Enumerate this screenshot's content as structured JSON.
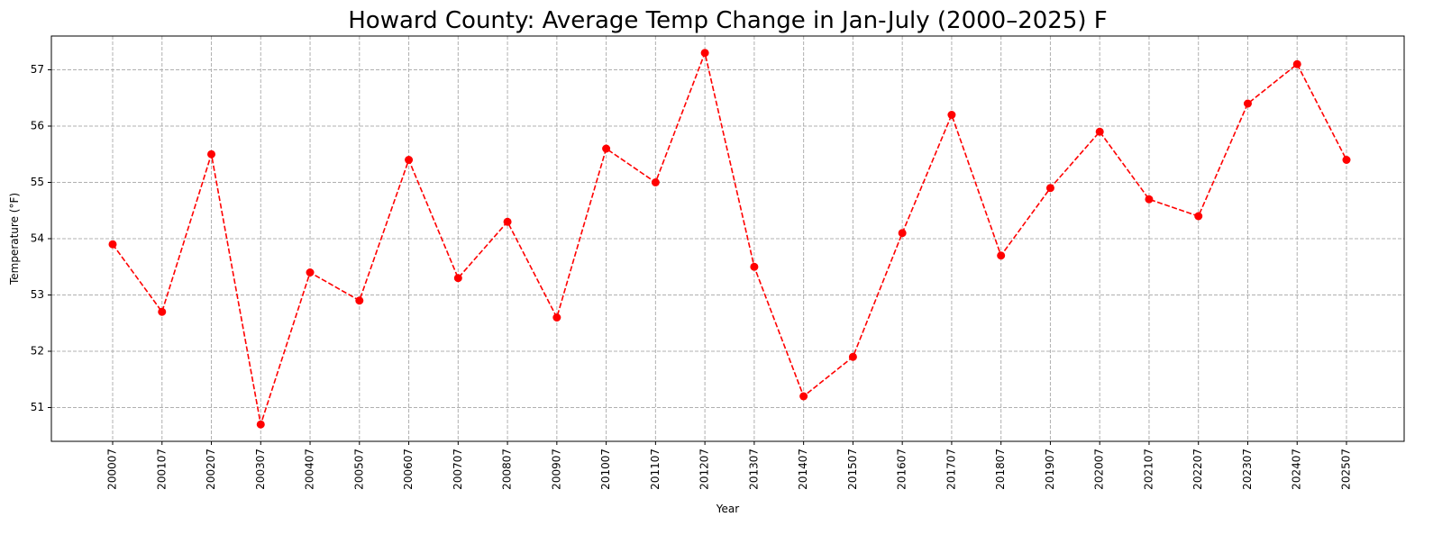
{
  "chart_data": {
    "type": "line",
    "title": "Howard County: Average Temp Change in Jan-July (2000–2025) F",
    "xlabel": "Year",
    "ylabel": "Temperature (°F)",
    "categories": [
      "200007",
      "200107",
      "200207",
      "200307",
      "200407",
      "200507",
      "200607",
      "200707",
      "200807",
      "200907",
      "201007",
      "201107",
      "201207",
      "201307",
      "201407",
      "201507",
      "201607",
      "201707",
      "201807",
      "201907",
      "202007",
      "202107",
      "202207",
      "202307",
      "202407",
      "202507"
    ],
    "series": [
      {
        "name": "",
        "values": [
          53.9,
          52.7,
          55.5,
          50.7,
          53.4,
          52.9,
          55.4,
          53.3,
          54.3,
          52.6,
          55.6,
          55.0,
          57.3,
          53.5,
          51.2,
          51.9,
          54.1,
          56.2,
          53.7,
          54.9,
          55.9,
          54.7,
          54.4,
          56.4,
          57.1,
          55.4
        ],
        "color": "#ff0000",
        "line_style": "dashed",
        "marker": "circle"
      }
    ],
    "yticks": [
      51,
      52,
      53,
      54,
      55,
      56,
      57
    ],
    "ylim": [
      50.4,
      57.6
    ],
    "grid": true,
    "grid_color": "#b0b0b0",
    "x_tick_rotation": "vertical"
  }
}
